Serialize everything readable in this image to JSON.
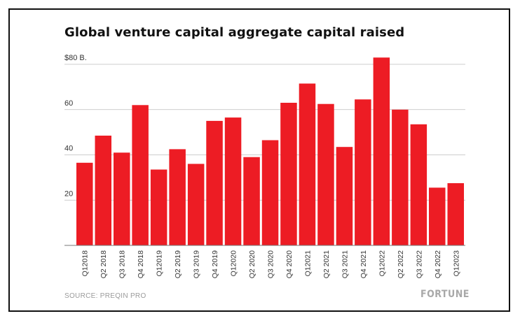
{
  "title": "Global venture capital aggregate capital raised",
  "source": "SOURCE: PREQIN PRO",
  "logo": "FORTUNE",
  "colors": {
    "bar": "#ed1c24",
    "grid": "#bdbdbd",
    "axis_text": "#333333"
  },
  "chart_data": {
    "type": "bar",
    "title": "Global venture capital aggregate capital raised",
    "xlabel": "",
    "ylabel": "",
    "ylim": [
      0,
      80
    ],
    "yticks": [
      20,
      40,
      60,
      80
    ],
    "ytick_labels": [
      "20",
      "40",
      "60",
      "$80 B."
    ],
    "grid": true,
    "categories": [
      "Q12018",
      "Q2 2018",
      "Q3 2018",
      "Q4 2018",
      "Q12019",
      "Q2 2019",
      "Q3 2019",
      "Q4 2019",
      "Q12020",
      "Q2 2020",
      "Q3 2020",
      "Q4 2020",
      "Q12021",
      "Q2 2021",
      "Q3 2021",
      "Q4 2021",
      "Q12022",
      "Q2 2022",
      "Q3 2022",
      "Q4 2022",
      "Q12023"
    ],
    "values": [
      36.5,
      48.5,
      41,
      62,
      33.5,
      42.5,
      36,
      55,
      56.5,
      39,
      46.5,
      63,
      71.5,
      62.5,
      43.5,
      64.5,
      83,
      60,
      53.5,
      25.5,
      27.5
    ]
  }
}
